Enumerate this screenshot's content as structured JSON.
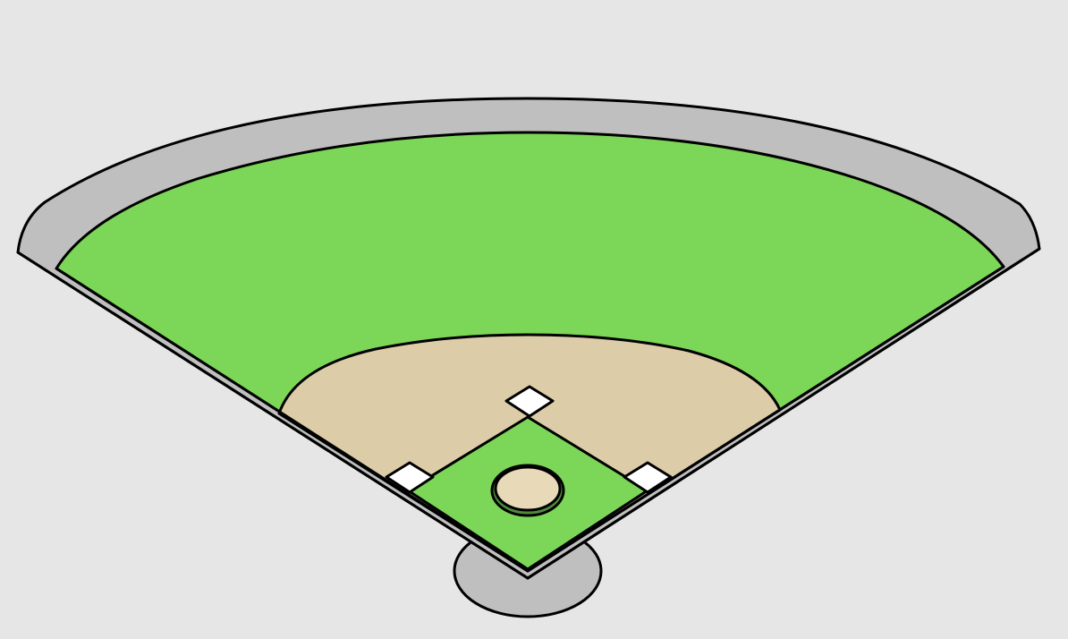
{
  "colors": {
    "background": "#e6e6e6",
    "warning_track": "#bfbfbf",
    "grass": "#7cd657",
    "infield_dirt": "#dccca8",
    "base": "#ffffff",
    "pitchers_mound": "#e8d9b8",
    "mound_rim": "#4f8a3a",
    "outline": "#000000"
  },
  "field": {
    "bases": [
      "first-base",
      "second-base",
      "third-base"
    ],
    "features": [
      "warning-track",
      "outfield-grass",
      "infield-dirt",
      "infield-grass",
      "pitchers-mound",
      "home-plate-area"
    ]
  }
}
